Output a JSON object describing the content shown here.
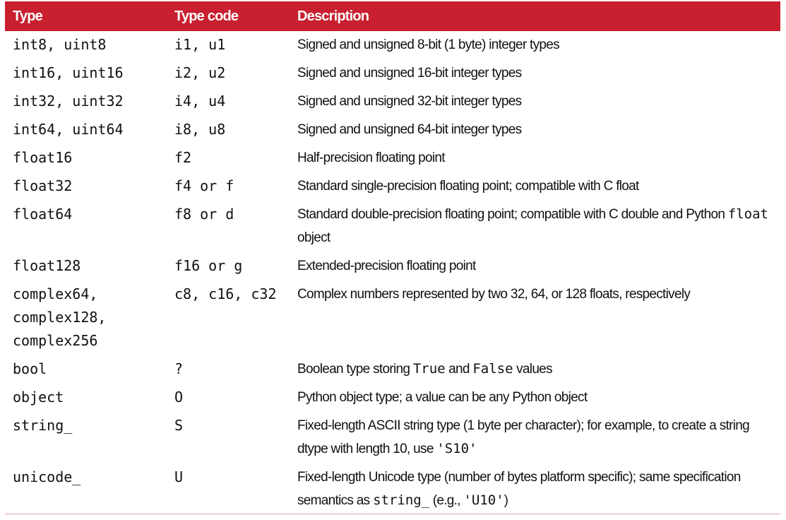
{
  "header": {
    "type": "Type",
    "code": "Type code",
    "description": "Description"
  },
  "rows": [
    {
      "type": "int8, uint8",
      "code": "i1, u1",
      "desc": [
        {
          "t": "Signed and unsigned 8-bit (1 byte) integer types"
        }
      ]
    },
    {
      "type": "int16, uint16",
      "code": "i2, u2",
      "desc": [
        {
          "t": "Signed and unsigned 16-bit integer types"
        }
      ]
    },
    {
      "type": "int32, uint32",
      "code": "i4, u4",
      "desc": [
        {
          "t": "Signed and unsigned 32-bit integer types"
        }
      ]
    },
    {
      "type": "int64, uint64",
      "code": "i8, u8",
      "desc": [
        {
          "t": "Signed and unsigned 64-bit integer types"
        }
      ]
    },
    {
      "type": "float16",
      "code": "f2",
      "desc": [
        {
          "t": "Half-precision floating point"
        }
      ]
    },
    {
      "type": "float32",
      "code": "f4 or f",
      "desc": [
        {
          "t": "Standard single-precision floating point; compatible with C float"
        }
      ]
    },
    {
      "type": "float64",
      "code": "f8 or d",
      "desc": [
        {
          "t": "Standard double-precision floating point; compatible with C double and Python "
        },
        {
          "c": "float"
        },
        {
          "t": " object"
        }
      ]
    },
    {
      "type": "float128",
      "code": "f16 or g",
      "desc": [
        {
          "t": "Extended-precision floating point"
        }
      ]
    },
    {
      "type": "complex64, complex128, complex256",
      "code": "c8, c16, c32",
      "desc": [
        {
          "t": "Complex numbers represented by two 32, 64, or 128 floats, respectively"
        }
      ]
    },
    {
      "type": "bool",
      "code": "?",
      "desc": [
        {
          "t": "Boolean type storing "
        },
        {
          "c": "True"
        },
        {
          "t": " and "
        },
        {
          "c": "False"
        },
        {
          "t": " values"
        }
      ]
    },
    {
      "type": "object",
      "code": "O",
      "desc": [
        {
          "t": "Python object type; a value can be any Python object"
        }
      ]
    },
    {
      "type": "string_",
      "code": "S",
      "desc": [
        {
          "t": "Fixed-length ASCII string type (1 byte per character); for example, to create a string dtype with length 10, use "
        },
        {
          "c": "'S10'"
        }
      ]
    },
    {
      "type": "unicode_",
      "code": "U",
      "desc": [
        {
          "t": "Fixed-length Unicode type (number of bytes platform specific); same specification semantics as "
        },
        {
          "c": "string_"
        },
        {
          "t": " (e.g., "
        },
        {
          "c": "'U10'"
        },
        {
          "t": ")"
        }
      ]
    }
  ],
  "colors": {
    "header_bg": "#c8202f",
    "header_text": "#ffffff"
  }
}
